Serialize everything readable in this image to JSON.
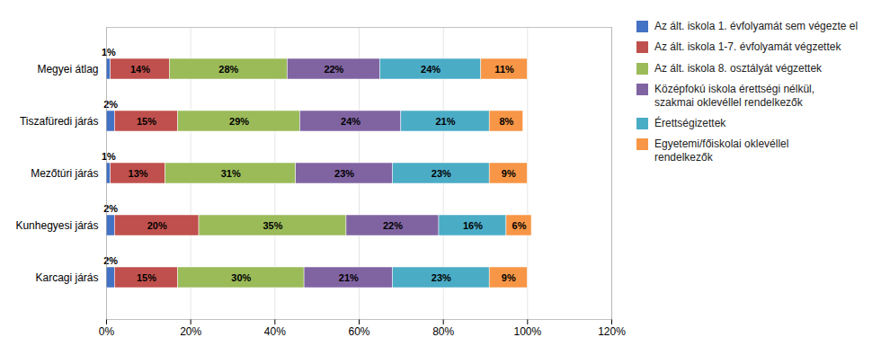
{
  "chart_data": {
    "type": "bar",
    "orientation": "horizontal",
    "stacked": true,
    "categories": [
      "Karcagi járás",
      "Kunhegyesi járás",
      "Mezőtúri járás",
      "Tiszafüredi járás",
      "Megyei átlag"
    ],
    "series": [
      {
        "name": "Az ált. iskola 1. évfolyamát sem végezte el",
        "color": "#4472C4",
        "values": [
          2,
          2,
          1,
          2,
          1
        ],
        "value_labels": [
          "2%",
          "2%",
          "1%",
          "2%",
          "1%"
        ]
      },
      {
        "name": "Az ált. iskola 1-7. évfolyamát végzettek",
        "color": "#C0504D",
        "values": [
          15,
          20,
          13,
          15,
          14
        ],
        "value_labels": [
          "15%",
          "20%",
          "13%",
          "15%",
          "14%"
        ]
      },
      {
        "name": "Az ált. iskola 8. osztályát végzettek",
        "color": "#9BBB59",
        "values": [
          30,
          35,
          31,
          29,
          28
        ],
        "value_labels": [
          "30%",
          "35%",
          "31%",
          "29%",
          "28%"
        ]
      },
      {
        "name": "Középfokú iskola érettségi nélkül,\nszakmai oklevéllel rendelkezők",
        "color": "#8064A2",
        "values": [
          21,
          22,
          23,
          24,
          22
        ],
        "value_labels": [
          "21%",
          "22%",
          "23%",
          "24%",
          "22%"
        ]
      },
      {
        "name": "Érettségizettek",
        "color": "#4BACC6",
        "values": [
          23,
          16,
          23,
          21,
          24
        ],
        "value_labels": [
          "23%",
          "16%",
          "23%",
          "21%",
          "24%"
        ]
      },
      {
        "name": "Egyetemi/főiskolai oklevéllel\nrendelkezők",
        "color": "#F79646",
        "values": [
          9,
          6,
          9,
          8,
          11
        ],
        "value_labels": [
          "9%",
          "6%",
          "9%",
          "8%",
          "11%"
        ]
      }
    ],
    "xlim": [
      0,
      120
    ],
    "xticks": [
      {
        "value": 0,
        "label": "0%"
      },
      {
        "value": 20,
        "label": "20%"
      },
      {
        "value": 40,
        "label": "40%"
      },
      {
        "value": 60,
        "label": "60%"
      },
      {
        "value": 80,
        "label": "80%"
      },
      {
        "value": 100,
        "label": "100%"
      },
      {
        "value": 120,
        "label": "120%"
      }
    ],
    "grid": true,
    "data_labels": true,
    "legend": "right"
  }
}
